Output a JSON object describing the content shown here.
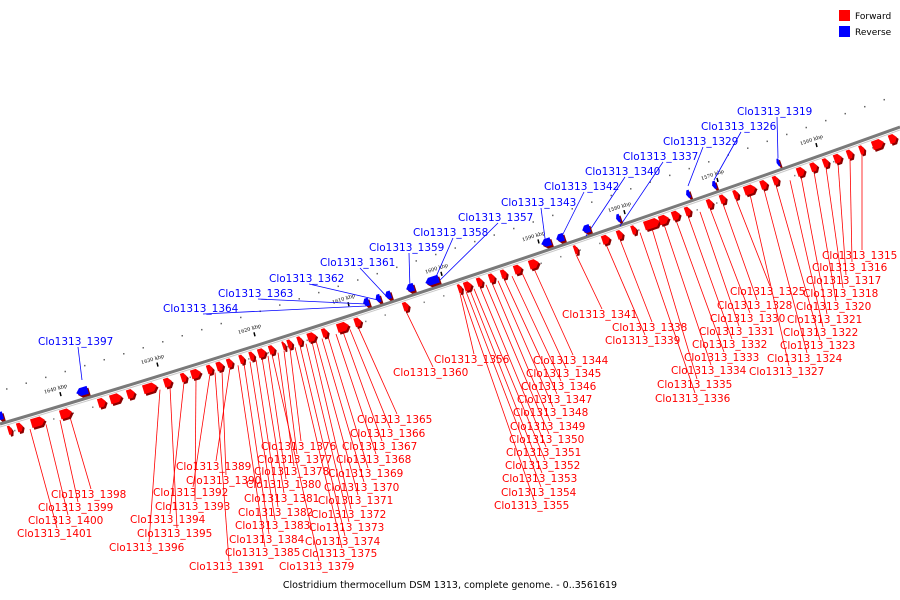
{
  "legend": {
    "forward": {
      "label": "Forward",
      "color": "#ff0000"
    },
    "reverse": {
      "label": "Reverse",
      "color": "#0000ff"
    }
  },
  "caption": "Clostridium thermocellum DSM 1313, complete genome. - 0..3561619",
  "ticks": [
    "1560 kbp",
    "1570 kbp",
    "1580 kbp",
    "1590 kbp",
    "1600 kbp",
    "1610 kbp",
    "1620 kbp",
    "1630 kbp",
    "1640 kbp"
  ],
  "reverse_labels": [
    "Clo1313_1319",
    "Clo1313_1326",
    "Clo1313_1329",
    "Clo1313_1337",
    "Clo1313_1340",
    "Clo1313_1342",
    "Clo1313_1343",
    "Clo1313_1357",
    "Clo1313_1358",
    "Clo1313_1359",
    "Clo1313_1361",
    "Clo1313_1362",
    "Clo1313_1363",
    "Clo1313_1364",
    "Clo1313_1397"
  ],
  "forward_labels": [
    "Clo1313_1315",
    "Clo1313_1316",
    "Clo1313_1317",
    "Clo1313_1318",
    "Clo1313_1320",
    "Clo1313_1321",
    "Clo1313_1322",
    "Clo1313_1323",
    "Clo1313_1324",
    "Clo1313_1327",
    "Clo1313_1325",
    "Clo1313_1328",
    "Clo1313_1330",
    "Clo1313_1331",
    "Clo1313_1332",
    "Clo1313_1333",
    "Clo1313_1334",
    "Clo1313_1335",
    "Clo1313_1336",
    "Clo1313_1341",
    "Clo1313_1338",
    "Clo1313_1339",
    "Clo1313_1344",
    "Clo1313_1345",
    "Clo1313_1346",
    "Clo1313_1347",
    "Clo1313_1348",
    "Clo1313_1349",
    "Clo1313_1350",
    "Clo1313_1351",
    "Clo1313_1352",
    "Clo1313_1353",
    "Clo1313_1354",
    "Clo1313_1355",
    "Clo1313_1356",
    "Clo1313_1360",
    "Clo1313_1365",
    "Clo1313_1366",
    "Clo1313_1367",
    "Clo1313_1368",
    "Clo1313_1369",
    "Clo1313_1370",
    "Clo1313_1371",
    "Clo1313_1372",
    "Clo1313_1373",
    "Clo1313_1374",
    "Clo1313_1375",
    "Clo1313_1376",
    "Clo1313_1377",
    "Clo1313_1378",
    "Clo1313_1379",
    "Clo1313_1380",
    "Clo1313_1381",
    "Clo1313_1382",
    "Clo1313_1383",
    "Clo1313_1384",
    "Clo1313_1385",
    "Clo1313_1389",
    "Clo1313_1390",
    "Clo1313_1391",
    "Clo1313_1392",
    "Clo1313_1393",
    "Clo1313_1394",
    "Clo1313_1395",
    "Clo1313_1396",
    "Clo1313_1398",
    "Clo1313_1399",
    "Clo1313_1400",
    "Clo1313_1401"
  ]
}
